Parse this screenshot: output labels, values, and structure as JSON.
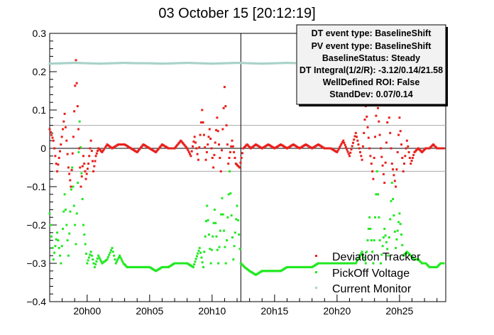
{
  "chart_data": {
    "type": "scatter",
    "title": "03 October 15 [20:12:19]",
    "xlabel": "",
    "ylabel": "",
    "x_unit": "minutes after 19:57",
    "xlim": [
      0,
      31.7
    ],
    "ylim": [
      -0.4,
      0.3
    ],
    "x_tick_labels": [
      {
        "label": "20h00",
        "x": 3
      },
      {
        "label": "20h05",
        "x": 8
      },
      {
        "label": "20h10",
        "x": 13
      },
      {
        "label": "20h15",
        "x": 18
      },
      {
        "label": "20h20",
        "x": 23
      },
      {
        "label": "20h25",
        "x": 28
      }
    ],
    "y_ticks": [
      -0.4,
      -0.3,
      -0.2,
      -0.1,
      0,
      0.1,
      0.2,
      0.3
    ],
    "y_tick_labels": [
      "−0.4",
      "−0.3",
      "−0.2",
      "−0.1",
      "0",
      "0.1",
      "0.2",
      "0.3"
    ],
    "reference_lines": {
      "horizontal": [
        0.06,
        0,
        -0.06
      ],
      "vertical_x": 15.3
    },
    "legend": {
      "placement": "bottom-right",
      "entries": [
        {
          "label": "Deviation Tracker",
          "color": "#e8201c"
        },
        {
          "label": "PickOff Voltage",
          "color": "#22e822"
        },
        {
          "label": "Current Monitor",
          "color": "#a8d2c8"
        }
      ]
    },
    "stats_box": {
      "placement": "top-right",
      "lines": [
        "DT event type: BaselineShift",
        "PV event type: BaselineShift",
        "BaselineStatus: Steady",
        "DT Integral(1/2/R): -3.12/0.14/21.58",
        "WellDefined ROI: False",
        "StandDev: 0.07/0.14"
      ]
    },
    "series": [
      {
        "name": "Deviation Tracker",
        "color": "#e8201c",
        "x": [
          0,
          0.3,
          0.6,
          0.9,
          1.2,
          1.5,
          1.7,
          1.9,
          2.1,
          2.3,
          2.5,
          2.7,
          2.9,
          3.1,
          3.3,
          3.5,
          3.7,
          3.9,
          4.2,
          4.6,
          5,
          5.5,
          6,
          6.5,
          7,
          7.5,
          8,
          8.5,
          9,
          9.5,
          10,
          10.5,
          11,
          11.3,
          11.6,
          11.9,
          12.2,
          12.5,
          12.8,
          13.1,
          13.4,
          13.7,
          14,
          14.3,
          14.6,
          14.9,
          15.2,
          15.5,
          15.8,
          16.1,
          16.5,
          17,
          17.5,
          18,
          18.5,
          19,
          19.5,
          20,
          20.5,
          21,
          21.5,
          22,
          22.5,
          23,
          23.5,
          24,
          24.5,
          25,
          25.3,
          25.6,
          25.9,
          26.2,
          26.5,
          26.8,
          27.1,
          27.4,
          27.7,
          28,
          28.3,
          28.6,
          28.9,
          29.2,
          29.5,
          29.8,
          30.1,
          30.4,
          30.7,
          31,
          31.3,
          31.6
        ],
        "y": [
          0.05,
          0.02,
          -0.06,
          0.01,
          0.09,
          -0.05,
          -0.1,
          0.03,
          0.23,
          0.05,
          -0.1,
          -0.02,
          -0.08,
          -0.04,
          0.02,
          -0.06,
          -0.02,
          0.0,
          -0.01,
          0.01,
          0.0,
          0.01,
          0.01,
          0.0,
          -0.01,
          0.01,
          0.0,
          -0.01,
          0.01,
          0.0,
          0.0,
          0.02,
          0.0,
          -0.02,
          0.03,
          -0.03,
          0.1,
          -0.03,
          0.05,
          -0.05,
          0.08,
          -0.06,
          0.16,
          -0.04,
          0.02,
          -0.04,
          -0.05,
          0.0,
          0.01,
          0.0,
          0.01,
          0.0,
          0.01,
          0.0,
          0.01,
          0.0,
          0.01,
          0.0,
          0.01,
          0.0,
          0.01,
          0.0,
          0.0,
          -0.01,
          0.02,
          -0.02,
          0.04,
          -0.03,
          0.11,
          0.0,
          -0.08,
          0.14,
          0.0,
          -0.09,
          0.12,
          -0.04,
          -0.1,
          0.08,
          -0.06,
          0.02,
          -0.04,
          -0.01,
          0.0,
          -0.01,
          0.0,
          0.0,
          0.01,
          0.0,
          0.0,
          0.0
        ]
      },
      {
        "name": "PickOff Voltage",
        "color": "#22e822",
        "x": [
          0,
          0.3,
          0.6,
          0.9,
          1.2,
          1.5,
          1.8,
          2.1,
          2.4,
          2.7,
          3.0,
          3.3,
          3.6,
          3.9,
          4.2,
          4.6,
          5.0,
          5.3,
          5.6,
          5.9,
          6.2,
          6.5,
          7,
          7.5,
          8,
          8.5,
          9,
          9.5,
          10,
          10.5,
          11,
          11.5,
          12,
          12.3,
          12.6,
          12.9,
          13.2,
          13.5,
          13.8,
          14.1,
          14.4,
          14.7,
          15.0,
          15.3,
          15.6,
          16,
          16.5,
          17,
          17.5,
          18,
          18.5,
          19,
          19.5,
          20,
          20.5,
          21,
          21.5,
          22,
          22.5,
          23,
          23.5,
          24,
          24.5,
          25,
          25.3,
          25.6,
          25.9,
          26.2,
          26.5,
          26.8,
          27.1,
          27.4,
          27.7,
          28,
          28.3,
          28.6,
          28.9,
          29.2,
          29.5,
          29.8,
          30.1,
          30.4,
          30.7,
          31,
          31.3,
          31.6
        ],
        "y": [
          -0.17,
          -0.29,
          -0.22,
          -0.3,
          -0.12,
          -0.28,
          -0.05,
          -0.25,
          0.07,
          -0.2,
          -0.3,
          -0.27,
          -0.31,
          -0.28,
          -0.3,
          -0.29,
          -0.26,
          -0.3,
          -0.28,
          -0.3,
          -0.31,
          -0.31,
          -0.31,
          -0.31,
          -0.31,
          -0.32,
          -0.31,
          -0.31,
          -0.3,
          -0.3,
          -0.3,
          -0.31,
          -0.26,
          -0.31,
          -0.15,
          -0.3,
          -0.16,
          -0.3,
          -0.13,
          -0.3,
          -0.06,
          -0.29,
          -0.15,
          -0.3,
          -0.31,
          -0.32,
          -0.33,
          -0.32,
          -0.32,
          -0.32,
          -0.32,
          -0.31,
          -0.31,
          -0.31,
          -0.31,
          -0.31,
          -0.3,
          -0.3,
          -0.3,
          -0.3,
          -0.3,
          -0.3,
          -0.3,
          -0.27,
          -0.3,
          -0.18,
          -0.3,
          -0.06,
          -0.3,
          -0.21,
          -0.28,
          -0.09,
          -0.26,
          -0.17,
          -0.28,
          -0.27,
          -0.28,
          -0.29,
          -0.29,
          -0.3,
          -0.3,
          -0.31,
          -0.31,
          -0.31,
          -0.3,
          -0.3
        ]
      },
      {
        "name": "Current Monitor",
        "color": "#a8d2c8",
        "x": [
          0,
          1,
          2,
          3,
          4,
          5,
          6,
          7,
          8,
          9,
          10,
          11,
          12,
          13,
          14,
          15,
          16,
          17,
          18,
          19,
          20,
          21,
          22,
          23,
          24,
          25,
          26,
          27,
          28,
          29,
          30,
          31
        ],
        "y": [
          0.221,
          0.222,
          0.223,
          0.222,
          0.221,
          0.222,
          0.223,
          0.222,
          0.222,
          0.221,
          0.222,
          0.223,
          0.222,
          0.221,
          0.222,
          0.223,
          0.222,
          0.221,
          0.222,
          0.223,
          0.222,
          0.222,
          0.221,
          0.222,
          0.223,
          0.222,
          0.221,
          0.222,
          0.223,
          0.222,
          0.222,
          0.221
        ]
      }
    ]
  }
}
